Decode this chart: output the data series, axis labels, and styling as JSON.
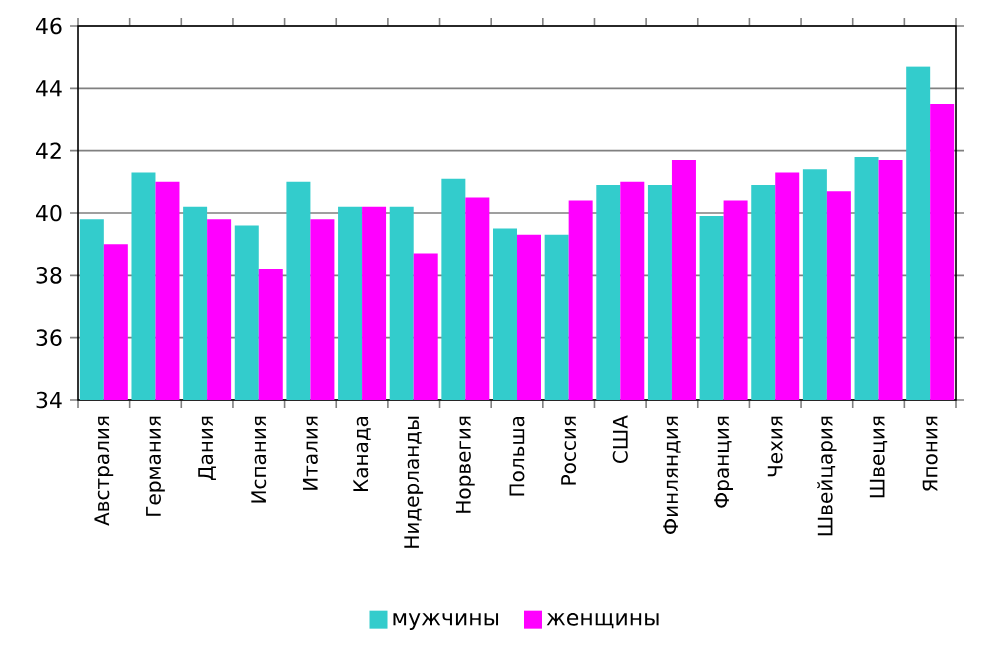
{
  "chart_data": {
    "type": "bar",
    "categories": [
      "Австралия",
      "Германия",
      "Дания",
      "Испания",
      "Италия",
      "Канада",
      "Нидерланды",
      "Норвегия",
      "Польша",
      "Россия",
      "США",
      "Финляндия",
      "Франция",
      "Чехия",
      "Швейцария",
      "Швеция",
      "Япония"
    ],
    "series": [
      {
        "name": "мужчины",
        "color": "#33cccc",
        "values": [
          39.8,
          41.3,
          40.2,
          39.6,
          41.0,
          40.2,
          40.2,
          41.1,
          39.5,
          39.3,
          40.9,
          40.9,
          39.9,
          40.9,
          41.4,
          41.8,
          44.7
        ]
      },
      {
        "name": "женщины",
        "color": "#ff00ff",
        "values": [
          39.0,
          41.0,
          39.8,
          38.2,
          39.8,
          40.2,
          38.7,
          40.5,
          39.3,
          40.4,
          41.0,
          41.7,
          40.4,
          41.3,
          40.7,
          41.7,
          43.5
        ]
      }
    ],
    "ylim": [
      34,
      46
    ],
    "yticks": [
      34,
      36,
      38,
      40,
      42,
      44,
      46
    ],
    "grid": "y",
    "legend": "bottom"
  }
}
